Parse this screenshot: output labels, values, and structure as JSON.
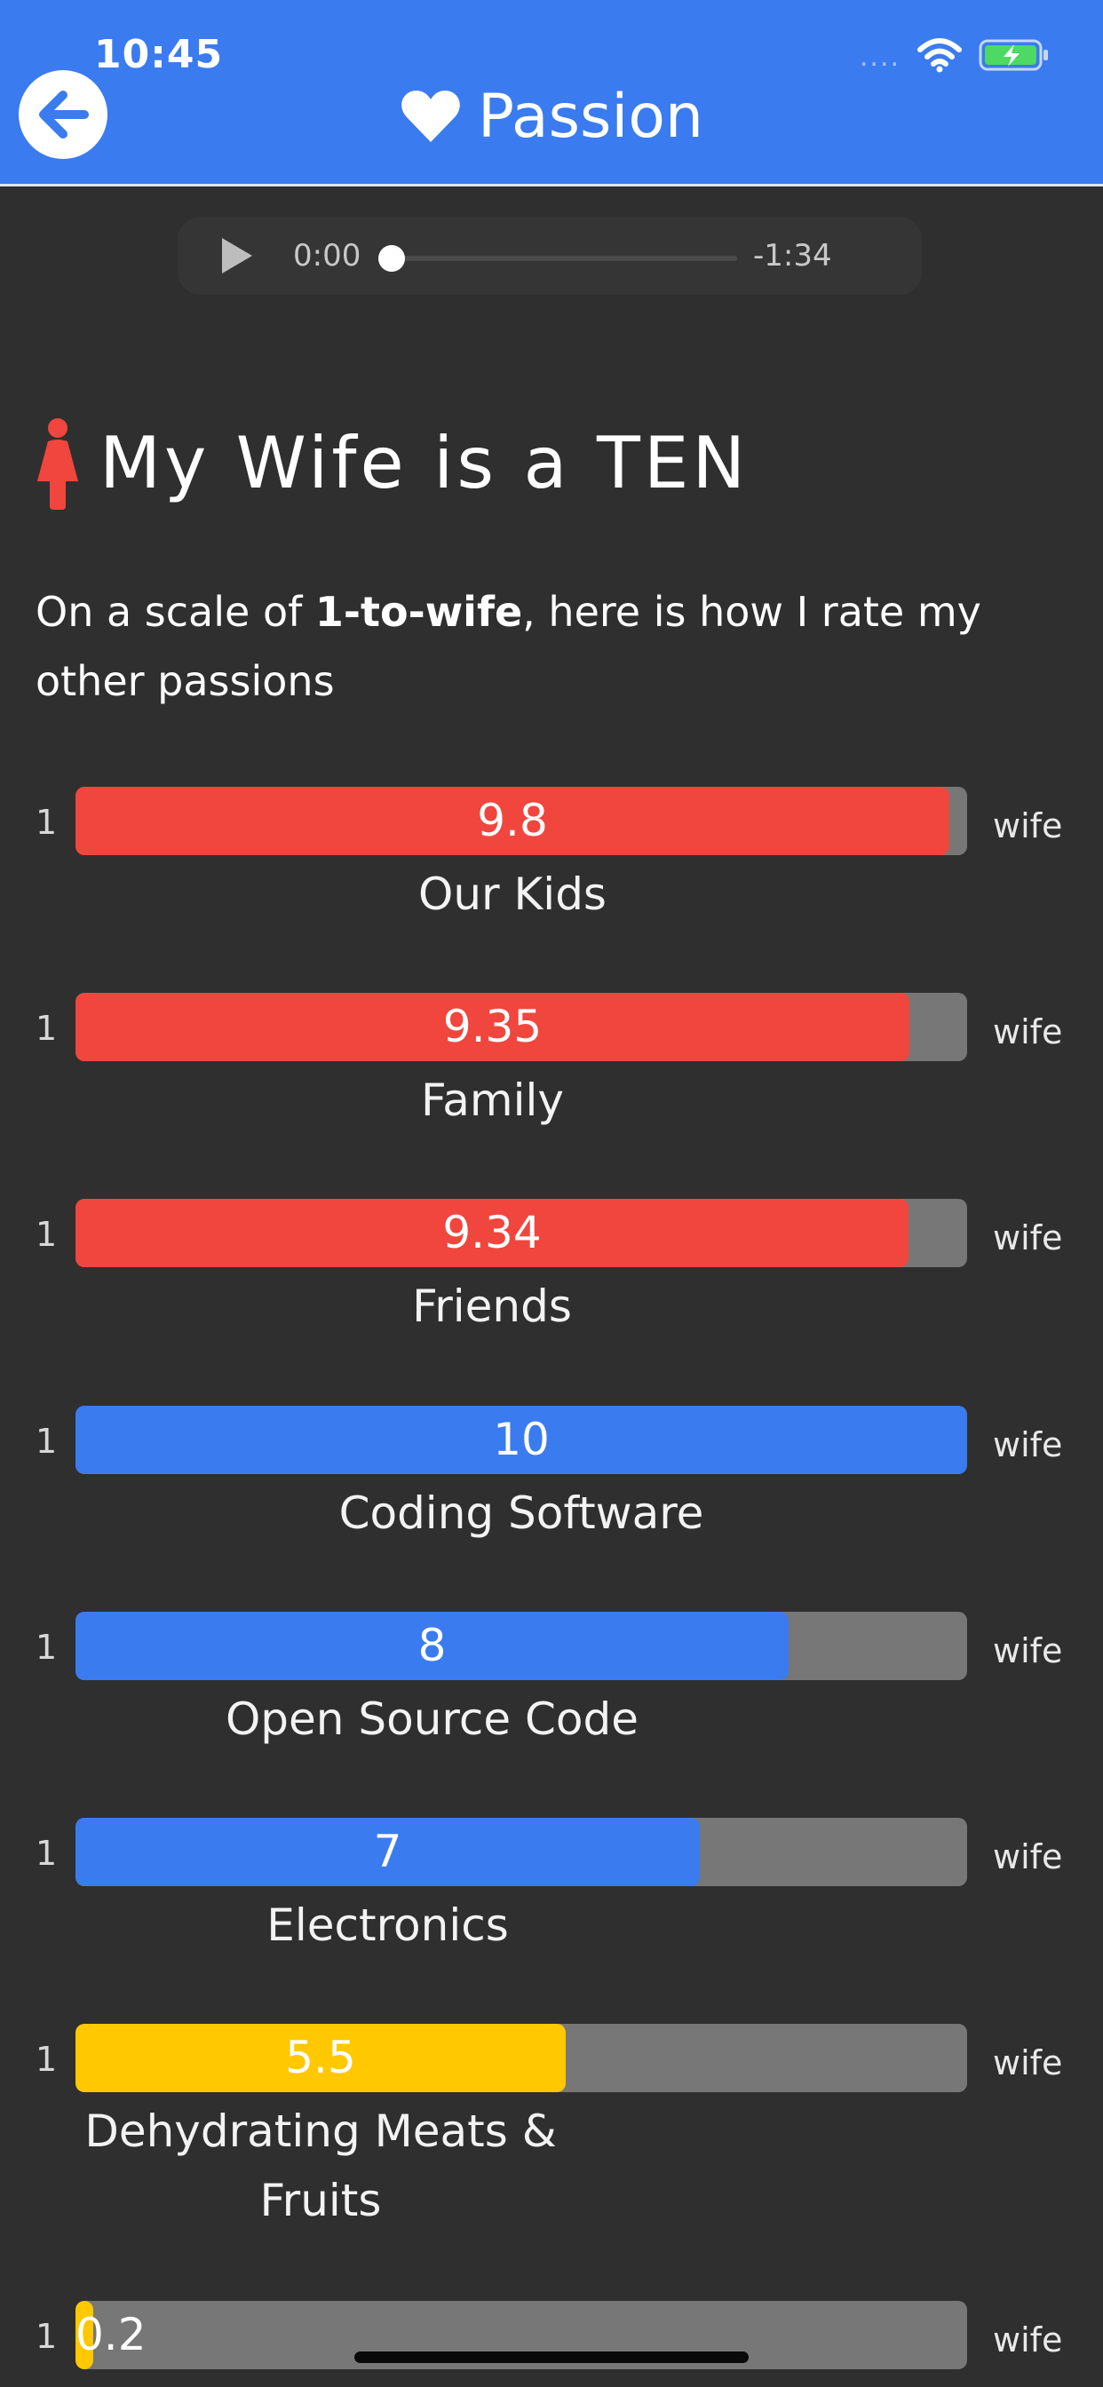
{
  "status_bar": {
    "time": "10:45",
    "signal": "....",
    "icons": [
      "wifi-icon",
      "battery-charging-icon"
    ]
  },
  "header": {
    "title": "Passion",
    "back_icon": "arrow-left-icon",
    "title_icon": "heart-icon",
    "color": "#3a7bf0"
  },
  "player": {
    "current_time": "0:00",
    "remaining_time": "-1:34",
    "progress": 0
  },
  "section": {
    "icon": "woman-icon",
    "title": "My Wife is a TEN",
    "intro_pre": "On a scale of ",
    "intro_bold": "1-to-wife",
    "intro_post": ", here is how I rate my other passions"
  },
  "scale": {
    "low": "1",
    "high": "wife",
    "min": 1,
    "max": 10
  },
  "colors": {
    "red": "#f0463d",
    "blue": "#3a7bf0",
    "yellow": "#ffc800",
    "track": "#777777"
  },
  "ratings": [
    {
      "label": "Our Kids",
      "value": "9.8",
      "fraction": 0.98,
      "color": "red"
    },
    {
      "label": "Family",
      "value": "9.35",
      "fraction": 0.935,
      "color": "red"
    },
    {
      "label": "Friends",
      "value": "9.34",
      "fraction": 0.934,
      "color": "red"
    },
    {
      "label": "Coding Software",
      "value": "10",
      "fraction": 1.0,
      "color": "blue"
    },
    {
      "label": "Open Source Code",
      "value": "8",
      "fraction": 0.8,
      "color": "blue"
    },
    {
      "label": "Electronics",
      "value": "7",
      "fraction": 0.7,
      "color": "blue"
    },
    {
      "label": "Dehydrating Meats & Fruits",
      "value": "5.5",
      "fraction": 0.55,
      "color": "yellow"
    },
    {
      "label": "",
      "value": "0.2",
      "fraction": 0.02,
      "color": "yellow"
    }
  ]
}
